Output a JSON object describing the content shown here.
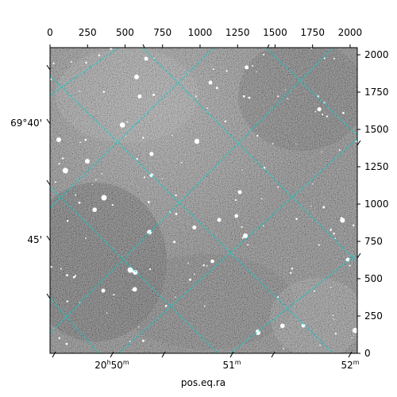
{
  "image": {
    "description_free": true,
    "gridline_color": "#00d0d0",
    "background_color": "#7a7a7a"
  },
  "axes": {
    "top_pixel_ticks": [
      "0",
      "250",
      "500",
      "750",
      "1000",
      "1250",
      "1500",
      "1750",
      "2000"
    ],
    "right_pixel_ticks": [
      "0",
      "250",
      "500",
      "750",
      "1000",
      "1250",
      "1500",
      "1750",
      "2000"
    ],
    "bottom_ra_ticks": [
      {
        "main": "20",
        "sup1": "h",
        "mid": "50",
        "sup2": "m"
      },
      {
        "main": "51",
        "sup1": "",
        "mid": "",
        "sup2": "m"
      },
      {
        "main": "52",
        "sup1": "",
        "mid": "",
        "sup2": "m"
      }
    ],
    "left_dec_ticks": [
      "69°40'",
      "45'"
    ],
    "xlabel": "pos.eq.ra"
  }
}
